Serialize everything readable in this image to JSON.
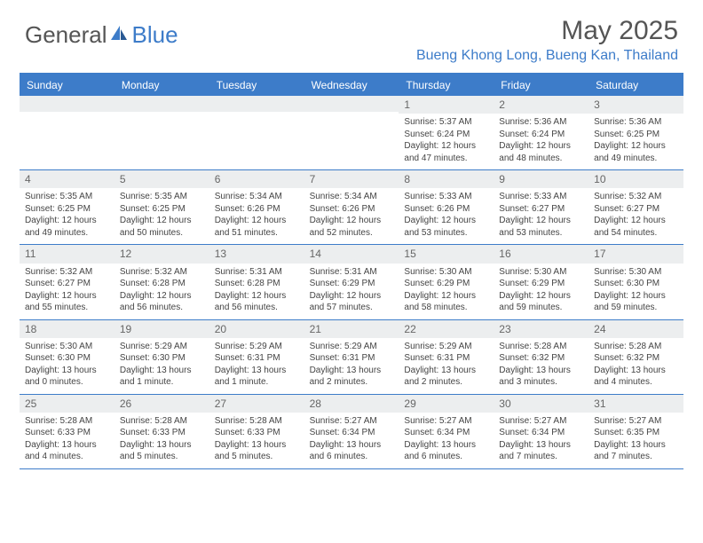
{
  "logo": {
    "text1": "General",
    "text2": "Blue"
  },
  "title": "May 2025",
  "location": "Bueng Khong Long, Bueng Kan, Thailand",
  "colors": {
    "accent": "#3d7cc9",
    "header_bg": "#3d7cc9",
    "header_text": "#ffffff",
    "daynum_bg": "#eceeef",
    "border": "#3d7cc9",
    "text": "#444444"
  },
  "day_names": [
    "Sunday",
    "Monday",
    "Tuesday",
    "Wednesday",
    "Thursday",
    "Friday",
    "Saturday"
  ],
  "weeks": [
    [
      {
        "empty": true
      },
      {
        "empty": true
      },
      {
        "empty": true
      },
      {
        "empty": true
      },
      {
        "n": "1",
        "sunrise": "Sunrise: 5:37 AM",
        "sunset": "Sunset: 6:24 PM",
        "d1": "Daylight: 12 hours",
        "d2": "and 47 minutes."
      },
      {
        "n": "2",
        "sunrise": "Sunrise: 5:36 AM",
        "sunset": "Sunset: 6:24 PM",
        "d1": "Daylight: 12 hours",
        "d2": "and 48 minutes."
      },
      {
        "n": "3",
        "sunrise": "Sunrise: 5:36 AM",
        "sunset": "Sunset: 6:25 PM",
        "d1": "Daylight: 12 hours",
        "d2": "and 49 minutes."
      }
    ],
    [
      {
        "n": "4",
        "sunrise": "Sunrise: 5:35 AM",
        "sunset": "Sunset: 6:25 PM",
        "d1": "Daylight: 12 hours",
        "d2": "and 49 minutes."
      },
      {
        "n": "5",
        "sunrise": "Sunrise: 5:35 AM",
        "sunset": "Sunset: 6:25 PM",
        "d1": "Daylight: 12 hours",
        "d2": "and 50 minutes."
      },
      {
        "n": "6",
        "sunrise": "Sunrise: 5:34 AM",
        "sunset": "Sunset: 6:26 PM",
        "d1": "Daylight: 12 hours",
        "d2": "and 51 minutes."
      },
      {
        "n": "7",
        "sunrise": "Sunrise: 5:34 AM",
        "sunset": "Sunset: 6:26 PM",
        "d1": "Daylight: 12 hours",
        "d2": "and 52 minutes."
      },
      {
        "n": "8",
        "sunrise": "Sunrise: 5:33 AM",
        "sunset": "Sunset: 6:26 PM",
        "d1": "Daylight: 12 hours",
        "d2": "and 53 minutes."
      },
      {
        "n": "9",
        "sunrise": "Sunrise: 5:33 AM",
        "sunset": "Sunset: 6:27 PM",
        "d1": "Daylight: 12 hours",
        "d2": "and 53 minutes."
      },
      {
        "n": "10",
        "sunrise": "Sunrise: 5:32 AM",
        "sunset": "Sunset: 6:27 PM",
        "d1": "Daylight: 12 hours",
        "d2": "and 54 minutes."
      }
    ],
    [
      {
        "n": "11",
        "sunrise": "Sunrise: 5:32 AM",
        "sunset": "Sunset: 6:27 PM",
        "d1": "Daylight: 12 hours",
        "d2": "and 55 minutes."
      },
      {
        "n": "12",
        "sunrise": "Sunrise: 5:32 AM",
        "sunset": "Sunset: 6:28 PM",
        "d1": "Daylight: 12 hours",
        "d2": "and 56 minutes."
      },
      {
        "n": "13",
        "sunrise": "Sunrise: 5:31 AM",
        "sunset": "Sunset: 6:28 PM",
        "d1": "Daylight: 12 hours",
        "d2": "and 56 minutes."
      },
      {
        "n": "14",
        "sunrise": "Sunrise: 5:31 AM",
        "sunset": "Sunset: 6:29 PM",
        "d1": "Daylight: 12 hours",
        "d2": "and 57 minutes."
      },
      {
        "n": "15",
        "sunrise": "Sunrise: 5:30 AM",
        "sunset": "Sunset: 6:29 PM",
        "d1": "Daylight: 12 hours",
        "d2": "and 58 minutes."
      },
      {
        "n": "16",
        "sunrise": "Sunrise: 5:30 AM",
        "sunset": "Sunset: 6:29 PM",
        "d1": "Daylight: 12 hours",
        "d2": "and 59 minutes."
      },
      {
        "n": "17",
        "sunrise": "Sunrise: 5:30 AM",
        "sunset": "Sunset: 6:30 PM",
        "d1": "Daylight: 12 hours",
        "d2": "and 59 minutes."
      }
    ],
    [
      {
        "n": "18",
        "sunrise": "Sunrise: 5:30 AM",
        "sunset": "Sunset: 6:30 PM",
        "d1": "Daylight: 13 hours",
        "d2": "and 0 minutes."
      },
      {
        "n": "19",
        "sunrise": "Sunrise: 5:29 AM",
        "sunset": "Sunset: 6:30 PM",
        "d1": "Daylight: 13 hours",
        "d2": "and 1 minute."
      },
      {
        "n": "20",
        "sunrise": "Sunrise: 5:29 AM",
        "sunset": "Sunset: 6:31 PM",
        "d1": "Daylight: 13 hours",
        "d2": "and 1 minute."
      },
      {
        "n": "21",
        "sunrise": "Sunrise: 5:29 AM",
        "sunset": "Sunset: 6:31 PM",
        "d1": "Daylight: 13 hours",
        "d2": "and 2 minutes."
      },
      {
        "n": "22",
        "sunrise": "Sunrise: 5:29 AM",
        "sunset": "Sunset: 6:31 PM",
        "d1": "Daylight: 13 hours",
        "d2": "and 2 minutes."
      },
      {
        "n": "23",
        "sunrise": "Sunrise: 5:28 AM",
        "sunset": "Sunset: 6:32 PM",
        "d1": "Daylight: 13 hours",
        "d2": "and 3 minutes."
      },
      {
        "n": "24",
        "sunrise": "Sunrise: 5:28 AM",
        "sunset": "Sunset: 6:32 PM",
        "d1": "Daylight: 13 hours",
        "d2": "and 4 minutes."
      }
    ],
    [
      {
        "n": "25",
        "sunrise": "Sunrise: 5:28 AM",
        "sunset": "Sunset: 6:33 PM",
        "d1": "Daylight: 13 hours",
        "d2": "and 4 minutes."
      },
      {
        "n": "26",
        "sunrise": "Sunrise: 5:28 AM",
        "sunset": "Sunset: 6:33 PM",
        "d1": "Daylight: 13 hours",
        "d2": "and 5 minutes."
      },
      {
        "n": "27",
        "sunrise": "Sunrise: 5:28 AM",
        "sunset": "Sunset: 6:33 PM",
        "d1": "Daylight: 13 hours",
        "d2": "and 5 minutes."
      },
      {
        "n": "28",
        "sunrise": "Sunrise: 5:27 AM",
        "sunset": "Sunset: 6:34 PM",
        "d1": "Daylight: 13 hours",
        "d2": "and 6 minutes."
      },
      {
        "n": "29",
        "sunrise": "Sunrise: 5:27 AM",
        "sunset": "Sunset: 6:34 PM",
        "d1": "Daylight: 13 hours",
        "d2": "and 6 minutes."
      },
      {
        "n": "30",
        "sunrise": "Sunrise: 5:27 AM",
        "sunset": "Sunset: 6:34 PM",
        "d1": "Daylight: 13 hours",
        "d2": "and 7 minutes."
      },
      {
        "n": "31",
        "sunrise": "Sunrise: 5:27 AM",
        "sunset": "Sunset: 6:35 PM",
        "d1": "Daylight: 13 hours",
        "d2": "and 7 minutes."
      }
    ]
  ]
}
